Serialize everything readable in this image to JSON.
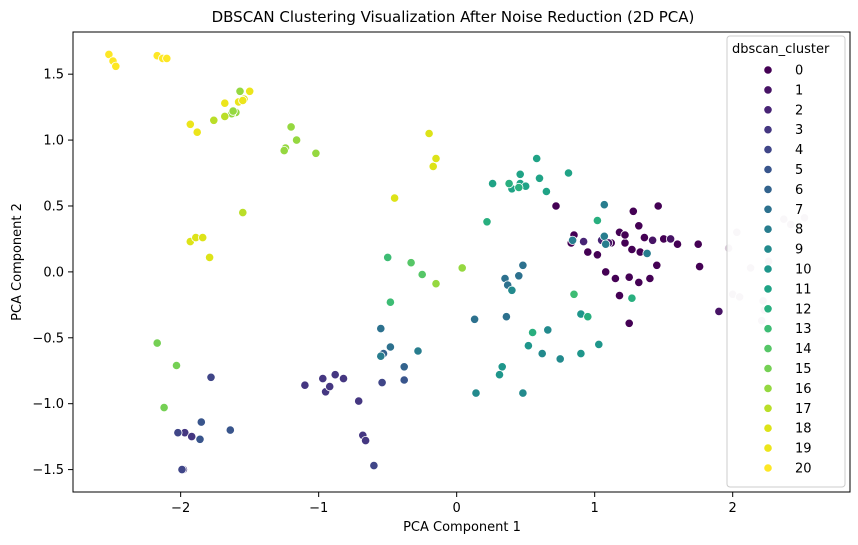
{
  "chart_data": {
    "type": "scatter",
    "title": "DBSCAN Clustering Visualization After Noise Reduction (2D PCA)",
    "xlabel": "PCA Component 1",
    "ylabel": "PCA Component 2",
    "xlim": [
      -2.78,
      2.85
    ],
    "ylim": [
      -1.67,
      1.82
    ],
    "xticks": [
      -2,
      -1,
      0,
      1,
      2
    ],
    "yticks": [
      -1.5,
      -1.0,
      -0.5,
      0.0,
      0.5,
      1.0,
      1.5
    ],
    "grid": false,
    "legend": {
      "title": "dbscan_cluster",
      "placement": "upper-right"
    },
    "colors": {
      "0": "#440154",
      "1": "#471365",
      "2": "#482475",
      "3": "#453781",
      "4": "#404688",
      "5": "#39558c",
      "6": "#33638d",
      "7": "#2d718e",
      "8": "#287d8e",
      "9": "#238a8d",
      "10": "#1f968b",
      "11": "#20a386",
      "12": "#29af7f",
      "13": "#3dbc74",
      "14": "#56c667",
      "15": "#75d054",
      "16": "#95d840",
      "17": "#bade28",
      "18": "#dde318",
      "19": "#ece51b",
      "20": "#fde725",
      "noise": "#d8c8d8"
    },
    "series": [
      {
        "name": "0",
        "points": [
          [
            0.72,
            0.5
          ],
          [
            0.85,
            0.28
          ],
          [
            0.83,
            0.22
          ],
          [
            0.95,
            0.15
          ],
          [
            1.02,
            0.13
          ],
          [
            1.12,
            0.22
          ],
          [
            1.18,
            0.3
          ],
          [
            1.22,
            0.22
          ],
          [
            1.32,
            0.35
          ],
          [
            1.36,
            0.26
          ],
          [
            1.27,
            0.17
          ],
          [
            1.25,
            -0.04
          ],
          [
            1.15,
            -0.05
          ],
          [
            1.08,
            0.0
          ],
          [
            1.4,
            -0.05
          ],
          [
            1.5,
            0.25
          ],
          [
            1.6,
            0.21
          ],
          [
            1.75,
            0.21
          ],
          [
            1.45,
            0.05
          ],
          [
            1.32,
            -0.08
          ],
          [
            1.33,
            0.15
          ],
          [
            1.25,
            -0.39
          ],
          [
            1.18,
            -0.18
          ],
          [
            1.22,
            0.28
          ],
          [
            1.28,
            0.46
          ],
          [
            1.46,
            0.5
          ],
          [
            1.76,
            0.04
          ]
        ]
      },
      {
        "name": "1",
        "points": [
          [
            1.1,
            0.22
          ],
          [
            1.42,
            0.24
          ],
          [
            1.55,
            0.25
          ],
          [
            1.9,
            -0.3
          ]
        ]
      },
      {
        "name": "2",
        "points": [
          [
            0.92,
            0.23
          ],
          [
            1.05,
            0.24
          ]
        ]
      },
      {
        "name": "3",
        "points": [
          [
            -1.97,
            -1.22
          ],
          [
            -1.98,
            -1.5
          ],
          [
            -1.92,
            -1.25
          ],
          [
            -1.1,
            -0.86
          ],
          [
            -0.97,
            -0.81
          ],
          [
            -0.95,
            -0.91
          ],
          [
            -0.92,
            -0.87
          ],
          [
            -0.88,
            -0.78
          ],
          [
            -0.82,
            -0.81
          ],
          [
            -0.71,
            -0.98
          ],
          [
            -0.68,
            -1.24
          ],
          [
            -0.66,
            -1.28
          ]
        ]
      },
      {
        "name": "4",
        "points": [
          [
            -2.02,
            -1.22
          ],
          [
            -1.99,
            -1.5
          ],
          [
            -0.6,
            -1.47
          ],
          [
            -0.54,
            -0.84
          ],
          [
            -1.78,
            -0.8
          ]
        ]
      },
      {
        "name": "5",
        "points": [
          [
            -1.85,
            -1.14
          ],
          [
            -1.86,
            -1.27
          ],
          [
            -1.64,
            -1.2
          ],
          [
            -0.38,
            -0.82
          ]
        ]
      },
      {
        "name": "6",
        "points": [
          [
            -0.38,
            -0.72
          ],
          [
            -0.53,
            -0.62
          ]
        ]
      },
      {
        "name": "7",
        "points": [
          [
            -0.55,
            -0.43
          ],
          [
            -0.48,
            -0.57
          ],
          [
            0.35,
            -0.05
          ],
          [
            0.37,
            -0.1
          ],
          [
            0.45,
            -0.03
          ],
          [
            0.48,
            0.05
          ],
          [
            0.36,
            -0.34
          ],
          [
            0.13,
            -0.36
          ]
        ]
      },
      {
        "name": "8",
        "points": [
          [
            -0.55,
            -0.64
          ],
          [
            -0.28,
            -0.6
          ],
          [
            0.84,
            0.24
          ],
          [
            1.07,
            0.51
          ],
          [
            1.07,
            0.27
          ],
          [
            1.08,
            0.21
          ],
          [
            1.38,
            0.14
          ]
        ]
      },
      {
        "name": "9",
        "points": [
          [
            0.14,
            -0.92
          ],
          [
            0.48,
            -0.92
          ],
          [
            0.4,
            -0.14
          ],
          [
            0.62,
            -0.62
          ],
          [
            0.66,
            -0.44
          ],
          [
            0.75,
            -0.66
          ]
        ]
      },
      {
        "name": "10",
        "points": [
          [
            0.33,
            -0.72
          ],
          [
            0.31,
            -0.78
          ],
          [
            0.52,
            -0.56
          ],
          [
            0.9,
            -0.62
          ],
          [
            1.03,
            -0.55
          ],
          [
            0.9,
            -0.32
          ]
        ]
      },
      {
        "name": "11",
        "points": [
          [
            0.26,
            0.67
          ],
          [
            0.4,
            0.63
          ],
          [
            0.46,
            0.67
          ],
          [
            0.5,
            0.65
          ],
          [
            0.58,
            0.86
          ],
          [
            0.6,
            0.71
          ],
          [
            0.65,
            0.61
          ],
          [
            0.81,
            0.75
          ],
          [
            0.46,
            0.74
          ]
        ]
      },
      {
        "name": "12",
        "points": [
          [
            0.38,
            0.67
          ],
          [
            0.22,
            0.38
          ],
          [
            1.02,
            0.39
          ],
          [
            0.95,
            -0.34
          ],
          [
            1.27,
            -0.2
          ],
          [
            0.55,
            -0.46
          ],
          [
            0.45,
            0.64
          ]
        ]
      },
      {
        "name": "13",
        "points": [
          [
            -0.5,
            0.11
          ],
          [
            -0.48,
            -0.23
          ],
          [
            0.85,
            -0.17
          ]
        ]
      },
      {
        "name": "14",
        "points": [
          [
            -0.33,
            0.07
          ],
          [
            -0.25,
            -0.02
          ]
        ]
      },
      {
        "name": "15",
        "points": [
          [
            -2.17,
            -0.54
          ],
          [
            -2.03,
            -0.71
          ],
          [
            -2.12,
            -1.03
          ]
        ]
      },
      {
        "name": "16",
        "points": [
          [
            -1.2,
            1.1
          ],
          [
            -1.16,
            1.0
          ],
          [
            -1.02,
            0.9
          ],
          [
            -1.24,
            0.94
          ],
          [
            -1.25,
            0.92
          ],
          [
            -1.6,
            1.21
          ],
          [
            -1.57,
            1.37
          ],
          [
            -1.63,
            1.2
          ],
          [
            -1.62,
            1.22
          ],
          [
            -0.15,
            -0.09
          ],
          [
            0.04,
            0.03
          ]
        ]
      },
      {
        "name": "17",
        "points": [
          [
            -1.76,
            1.15
          ],
          [
            -1.68,
            1.18
          ],
          [
            -1.55,
            0.45
          ]
        ]
      },
      {
        "name": "18",
        "points": [
          [
            -0.45,
            0.56
          ],
          [
            -0.2,
            1.05
          ],
          [
            -0.17,
            0.8
          ],
          [
            -0.15,
            0.86
          ],
          [
            -1.93,
            0.23
          ],
          [
            -1.89,
            0.26
          ],
          [
            -1.84,
            0.26
          ],
          [
            -1.79,
            0.11
          ],
          [
            -1.54,
            1.31
          ]
        ]
      },
      {
        "name": "19",
        "points": [
          [
            -1.93,
            1.12
          ],
          [
            -1.88,
            1.06
          ],
          [
            -1.68,
            1.28
          ],
          [
            -1.58,
            1.29
          ],
          [
            -1.5,
            1.37
          ],
          [
            -1.55,
            1.3
          ]
        ]
      },
      {
        "name": "20",
        "points": [
          [
            -2.52,
            1.65
          ],
          [
            -2.49,
            1.6
          ],
          [
            -2.47,
            1.56
          ],
          [
            -2.17,
            1.64
          ],
          [
            -2.13,
            1.62
          ],
          [
            -2.1,
            1.62
          ]
        ]
      },
      {
        "name": "noise",
        "points": [
          [
            1.97,
            0.18
          ],
          [
            2.03,
            0.3
          ],
          [
            2.13,
            0.03
          ],
          [
            2.26,
            0.08
          ],
          [
            2.37,
            0.4
          ],
          [
            2.52,
            0.41
          ],
          [
            2.0,
            -0.17
          ],
          [
            2.05,
            -0.19
          ],
          [
            2.22,
            -0.22
          ],
          [
            2.23,
            -0.29
          ],
          [
            2.25,
            -0.44
          ],
          [
            2.21,
            -0.37
          ],
          [
            2.42,
            0.36
          ]
        ]
      }
    ],
    "legend_entries": [
      "0",
      "1",
      "2",
      "3",
      "4",
      "5",
      "6",
      "7",
      "8",
      "9",
      "10",
      "11",
      "12",
      "13",
      "14",
      "15",
      "16",
      "17",
      "18",
      "19",
      "20"
    ]
  }
}
